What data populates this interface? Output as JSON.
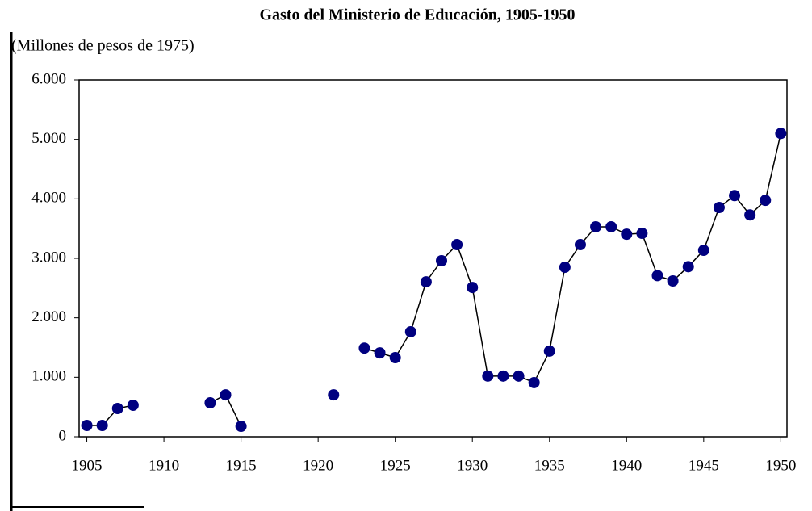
{
  "chart_data": {
    "type": "line",
    "title": "Gasto del Ministerio de Educación, 1905-1950",
    "subtitle": "(Millones de pesos de 1975)",
    "x": [
      1905,
      1906,
      1907,
      1908,
      1909,
      1910,
      1911,
      1912,
      1913,
      1914,
      1915,
      1916,
      1917,
      1918,
      1919,
      1920,
      1921,
      1922,
      1923,
      1924,
      1925,
      1926,
      1927,
      1928,
      1929,
      1930,
      1931,
      1932,
      1933,
      1934,
      1935,
      1936,
      1937,
      1938,
      1939,
      1940,
      1941,
      1942,
      1943,
      1944,
      1945,
      1946,
      1947,
      1948,
      1949,
      1950
    ],
    "series": [
      {
        "name": "Gasto",
        "color": "#000080",
        "values": [
          190,
          190,
          475,
          530,
          null,
          null,
          null,
          null,
          570,
          705,
          176,
          null,
          null,
          null,
          null,
          null,
          705,
          null,
          1490,
          1410,
          1330,
          1765,
          2605,
          2960,
          3230,
          2510,
          1020,
          1020,
          1020,
          910,
          1440,
          2850,
          3230,
          3530,
          3530,
          3405,
          3420,
          2710,
          2620,
          2860,
          3135,
          3855,
          4055,
          3730,
          3975,
          5100
        ]
      }
    ],
    "xlim": [
      1904.5,
      1950.4
    ],
    "xticks": [
      1905,
      1910,
      1915,
      1920,
      1925,
      1930,
      1935,
      1940,
      1945,
      1950
    ],
    "ylim": [
      0,
      6000
    ],
    "yticks": [
      0,
      {
        "value": 1000,
        "label": "1.000"
      },
      {
        "value": 2000,
        "label": "2.000"
      },
      {
        "value": 3000,
        "label": "3.000"
      },
      {
        "value": 4000,
        "label": "4.000"
      },
      {
        "value": 5000,
        "label": "5.000"
      },
      {
        "value": 6000,
        "label": "6.000"
      }
    ],
    "grid": false
  }
}
